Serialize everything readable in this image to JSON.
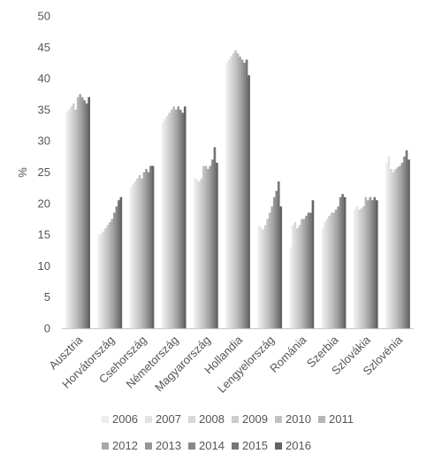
{
  "chart_data": {
    "type": "bar",
    "title": "",
    "xlabel": "",
    "ylabel": "%",
    "ylim": [
      0,
      50
    ],
    "yticks": [
      0,
      5,
      10,
      15,
      20,
      25,
      30,
      35,
      40,
      45,
      50
    ],
    "grid": false,
    "legend": "bottom",
    "categories": [
      "Ausztria",
      "Horvátország",
      "Csehország",
      "Németország",
      "Magyarország",
      "Hollandia",
      "Lengyelország",
      "Románia",
      "Szerbia",
      "Szlovákia",
      "Szlovénia"
    ],
    "series": [
      {
        "name": "2006",
        "color": "#ededed",
        "values": [
          34.5,
          15.0,
          22.5,
          33.0,
          24.0,
          42.5,
          16.5,
          13.0,
          16.0,
          19.0,
          26.5
        ]
      },
      {
        "name": "2007",
        "color": "#e3e3e3",
        "values": [
          35.0,
          15.2,
          23.0,
          33.5,
          23.8,
          43.0,
          16.2,
          16.5,
          17.0,
          19.5,
          27.5
        ]
      },
      {
        "name": "2008",
        "color": "#d8d8d8",
        "values": [
          35.5,
          15.5,
          23.5,
          34.0,
          23.5,
          43.5,
          15.8,
          17.0,
          17.5,
          19.0,
          25.5
        ]
      },
      {
        "name": "2009",
        "color": "#cdcdcd",
        "values": [
          36.0,
          16.0,
          24.0,
          34.5,
          24.0,
          44.0,
          16.5,
          16.0,
          18.0,
          19.2,
          25.0
        ]
      },
      {
        "name": "2010",
        "color": "#c2c2c2",
        "values": [
          35.0,
          16.5,
          24.5,
          35.0,
          26.0,
          44.5,
          17.5,
          16.5,
          18.5,
          19.5,
          25.5
        ]
      },
      {
        "name": "2011",
        "color": "#b5b5b5",
        "values": [
          37.0,
          17.0,
          24.0,
          35.5,
          26.0,
          44.0,
          18.5,
          17.5,
          18.5,
          21.0,
          25.8
        ]
      },
      {
        "name": "2012",
        "color": "#a8a8a8",
        "values": [
          37.5,
          17.5,
          25.0,
          35.0,
          25.5,
          43.5,
          19.5,
          17.5,
          19.0,
          20.5,
          26.0
        ]
      },
      {
        "name": "2013",
        "color": "#989898",
        "values": [
          37.0,
          18.5,
          25.5,
          35.5,
          26.0,
          43.0,
          21.0,
          18.0,
          19.5,
          21.0,
          26.5
        ]
      },
      {
        "name": "2014",
        "color": "#888888",
        "values": [
          36.5,
          19.5,
          25.0,
          35.0,
          27.0,
          42.5,
          22.0,
          18.5,
          21.0,
          20.5,
          27.5
        ]
      },
      {
        "name": "2015",
        "color": "#767676",
        "values": [
          36.0,
          20.5,
          26.0,
          34.5,
          29.0,
          43.0,
          23.5,
          18.5,
          21.5,
          21.0,
          28.5
        ]
      },
      {
        "name": "2016",
        "color": "#636363",
        "values": [
          37.0,
          21.0,
          26.0,
          35.5,
          26.5,
          40.5,
          19.5,
          20.5,
          21.0,
          20.5,
          27.0
        ]
      }
    ]
  }
}
